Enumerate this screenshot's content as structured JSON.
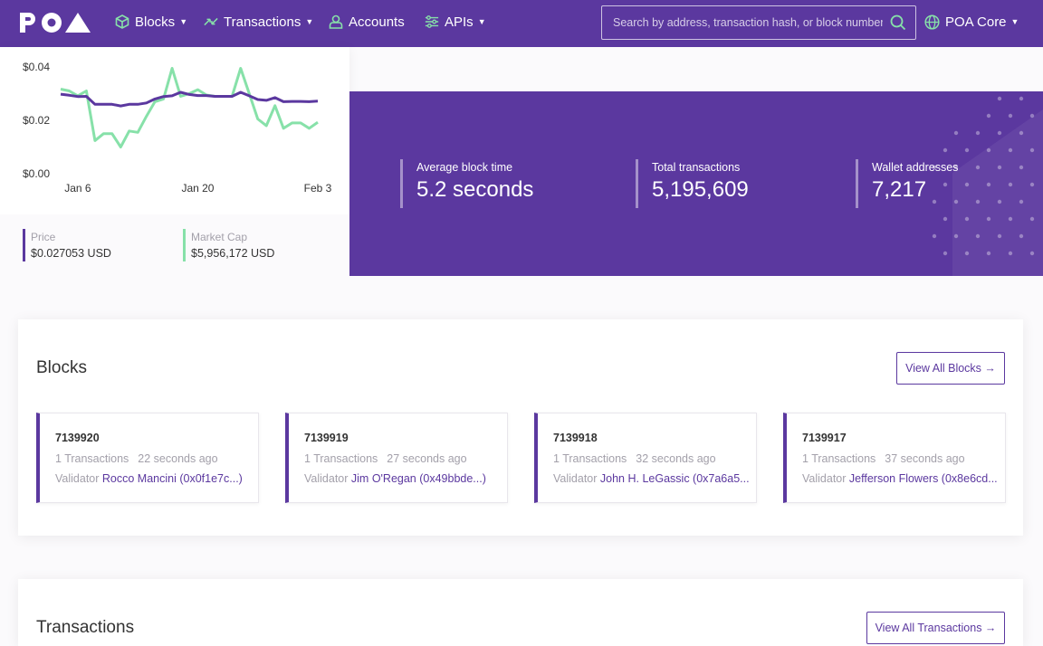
{
  "nav": {
    "logo_text": "POA",
    "blocks": "Blocks",
    "transactions": "Transactions",
    "accounts": "Accounts",
    "apis": "APIs",
    "network": "POA Core",
    "search_placeholder": "Search by address, transaction hash, or block number"
  },
  "colors": {
    "brand": "#5b389f",
    "price_line": "#5b389f",
    "market_cap_line": "#87e1a9"
  },
  "chart_data": {
    "type": "line",
    "x": [
      "Jan 4",
      "Jan 5",
      "Jan 6",
      "Jan 7",
      "Jan 8",
      "Jan 9",
      "Jan 10",
      "Jan 11",
      "Jan 12",
      "Jan 13",
      "Jan 14",
      "Jan 15",
      "Jan 16",
      "Jan 17",
      "Jan 18",
      "Jan 19",
      "Jan 20",
      "Jan 21",
      "Jan 22",
      "Jan 23",
      "Jan 24",
      "Jan 25",
      "Jan 26",
      "Jan 27",
      "Jan 28",
      "Jan 29",
      "Jan 30",
      "Jan 31",
      "Feb 1",
      "Feb 2",
      "Feb 3"
    ],
    "x_ticks": [
      "Jan 6",
      "Jan 20",
      "Feb 3"
    ],
    "y_ticks": [
      "$0.04",
      "$0.02",
      "$0.00"
    ],
    "ylim": [
      0,
      0.04
    ],
    "series": [
      {
        "name": "Price",
        "values": [
          0.0298,
          0.0294,
          0.0289,
          0.029,
          0.026,
          0.026,
          0.026,
          0.0254,
          0.026,
          0.026,
          0.0265,
          0.028,
          0.0289,
          0.0292,
          0.0305,
          0.0297,
          0.0293,
          0.0293,
          0.029,
          0.029,
          0.029,
          0.0305,
          0.0292,
          0.0278,
          0.0275,
          0.0285,
          0.027,
          0.0271,
          0.0271,
          0.027,
          0.0272
        ]
      },
      {
        "name": "Market Cap",
        "values": [
          0.0317,
          0.031,
          0.0292,
          0.031,
          0.0124,
          0.015,
          0.015,
          0.01,
          0.016,
          0.0155,
          0.0215,
          0.027,
          0.028,
          0.0395,
          0.029,
          0.03,
          0.0315,
          0.0295,
          0.029,
          0.029,
          0.029,
          0.0395,
          0.03,
          0.0205,
          0.018,
          0.0255,
          0.017,
          0.019,
          0.019,
          0.017,
          0.0193
        ]
      }
    ]
  },
  "legend": {
    "price_label": "Price",
    "price_value": "$0.027053 USD",
    "market_cap_label": "Market Cap",
    "market_cap_value": "$5,956,172 USD"
  },
  "stats": {
    "avg_block_time_label": "Average block time",
    "avg_block_time_value": "5.2 seconds",
    "total_tx_label": "Total transactions",
    "total_tx_value": "5,195,609",
    "wallets_label": "Wallet addresses",
    "wallets_value": "7,217"
  },
  "blocks_section": {
    "title": "Blocks",
    "view_all": "View All Blocks →",
    "items": [
      {
        "number": "7139920",
        "txs": "1 Transactions",
        "age": "22 seconds ago",
        "validator_label": "Validator",
        "validator": "Rocco Mancini (0x0f1e7c...)"
      },
      {
        "number": "7139919",
        "txs": "1 Transactions",
        "age": "27 seconds ago",
        "validator_label": "Validator",
        "validator": "Jim O'Regan (0x49bbde...)"
      },
      {
        "number": "7139918",
        "txs": "1 Transactions",
        "age": "32 seconds ago",
        "validator_label": "Validator",
        "validator": "John H. LeGassic (0x7a6a5..."
      },
      {
        "number": "7139917",
        "txs": "1 Transactions",
        "age": "37 seconds ago",
        "validator_label": "Validator",
        "validator": "Jefferson Flowers (0x8e6cd..."
      }
    ]
  },
  "transactions_section": {
    "title": "Transactions",
    "view_all": "View All Transactions →"
  }
}
